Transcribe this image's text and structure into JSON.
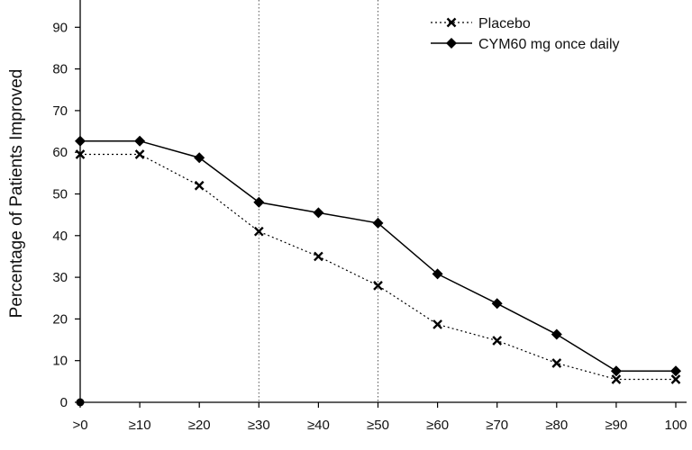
{
  "chart_data": {
    "type": "line",
    "categories": [
      ">0",
      "≥10",
      "≥20",
      "≥30",
      "≥40",
      "≥50",
      "≥60",
      "≥70",
      "≥80",
      "≥90",
      "100"
    ],
    "ylabel": "Percentage of Patients Improved",
    "xlabel": "",
    "title": "",
    "ylim": [
      0,
      95
    ],
    "yticks": [
      0,
      10,
      20,
      30,
      40,
      50,
      60,
      70,
      80,
      90
    ],
    "grid": false,
    "reference_lines_at": [
      "≥30",
      "≥50"
    ],
    "legend_position": "top-right",
    "series": [
      {
        "name": "Placebo",
        "style": "dotted",
        "marker": "x",
        "color": "#000000",
        "values": [
          59.5,
          59.5,
          52,
          41,
          35,
          28,
          18.7,
          14.8,
          9.4,
          5.5,
          5.5
        ]
      },
      {
        "name": "CYM60 mg once daily",
        "style": "solid",
        "marker": "diamond",
        "color": "#000000",
        "values": [
          62.7,
          62.7,
          58.7,
          48,
          45.5,
          43,
          30.8,
          23.7,
          16.3,
          7.5,
          7.5
        ]
      }
    ]
  }
}
